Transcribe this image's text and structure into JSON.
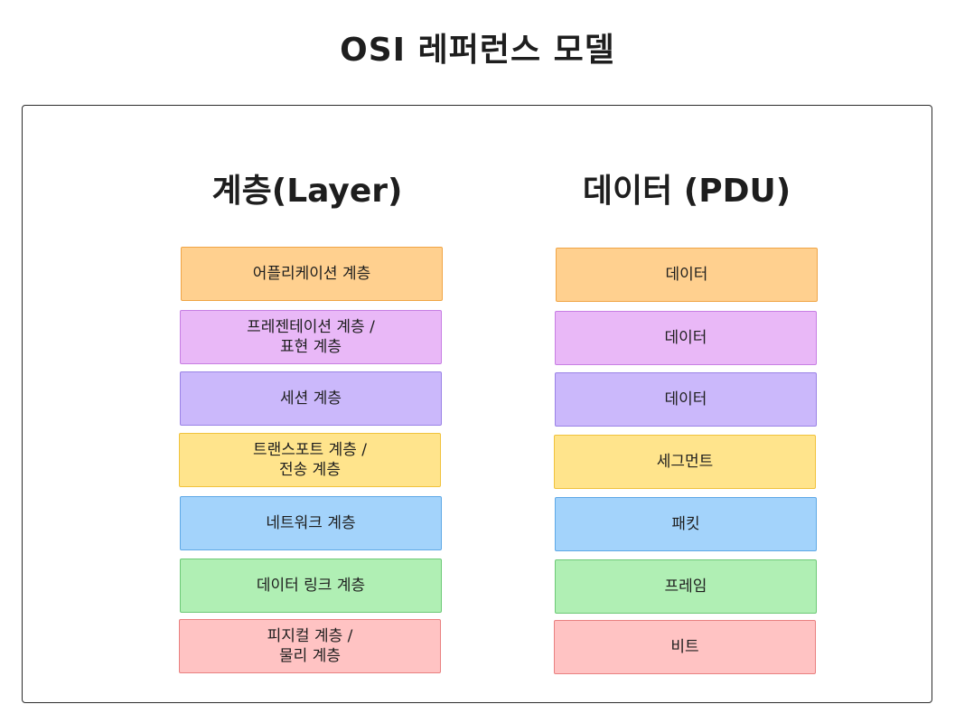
{
  "title": "OSI 레퍼런스 모델",
  "headers": {
    "layer": "계층(Layer)",
    "pdu": "데이터 (PDU)"
  },
  "layers": [
    {
      "label": "어플리케이션 계층",
      "pdu": "데이터",
      "fill": "#ffd08f",
      "stroke": "#f0a545"
    },
    {
      "label": "프레젠테이션 계층 /\n표현 계층",
      "pdu": "데이터",
      "fill": "#e9b8f7",
      "stroke": "#c77ee3"
    },
    {
      "label": "세션 계층",
      "pdu": "데이터",
      "fill": "#cbb8fb",
      "stroke": "#9a82e6"
    },
    {
      "label": "트랜스포트 계층 /\n전송 계층",
      "pdu": "세그먼트",
      "fill": "#ffe48c",
      "stroke": "#f0c23c"
    },
    {
      "label": "네트워크 계층",
      "pdu": "패킷",
      "fill": "#a3d3fb",
      "stroke": "#5ea8e6"
    },
    {
      "label": "데이터 링크 계층",
      "pdu": "프레임",
      "fill": "#b0efb4",
      "stroke": "#6cc976"
    },
    {
      "label": "피지컬 계층 /\n물리 계층",
      "pdu": "비트",
      "fill": "#ffc3c3",
      "stroke": "#e98080"
    }
  ]
}
